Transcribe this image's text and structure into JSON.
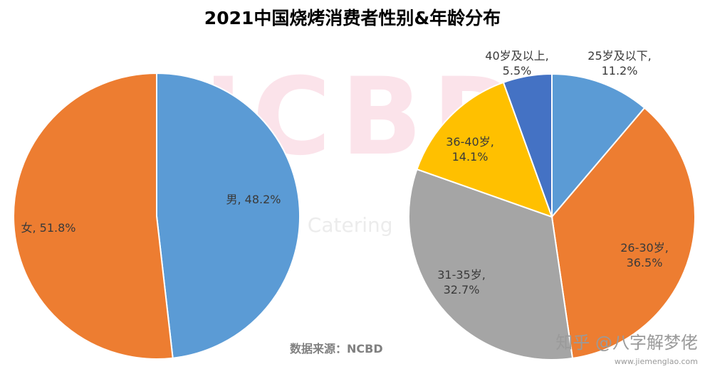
{
  "title": "2021中国烧烤消费者性别&年龄分布",
  "source": "数据来源：NCBD",
  "watermark": {
    "letters": "NCBD",
    "sub": "w Catering",
    "corner": "知乎 @八字解梦佬",
    "url": "www.jiemenglao.com"
  },
  "chart_data": [
    {
      "type": "pie",
      "title": "",
      "slices": [
        {
          "label": "男",
          "value": 48.2,
          "text": "男, 48.2%",
          "color": "#5b9bd5"
        },
        {
          "label": "女",
          "value": 51.8,
          "text": "女, 51.8%",
          "color": "#ed7d31"
        }
      ]
    },
    {
      "type": "pie",
      "title": "",
      "slices": [
        {
          "label": "25岁及以下",
          "value": 11.2,
          "text": [
            "25岁及以下,",
            "11.2%"
          ],
          "color": "#5b9bd5"
        },
        {
          "label": "26-30岁",
          "value": 36.5,
          "text": [
            "26-30岁,",
            "36.5%"
          ],
          "color": "#ed7d31"
        },
        {
          "label": "31-35岁",
          "value": 32.7,
          "text": [
            "31-35岁,",
            "32.7%"
          ],
          "color": "#a5a5a5"
        },
        {
          "label": "36-40岁",
          "value": 14.1,
          "text": [
            "36-40岁,",
            "14.1%"
          ],
          "color": "#ffc000"
        },
        {
          "label": "40岁及以上",
          "value": 5.5,
          "text": [
            "40岁及以上,",
            "5.5%"
          ],
          "color": "#4472c4"
        }
      ]
    }
  ]
}
